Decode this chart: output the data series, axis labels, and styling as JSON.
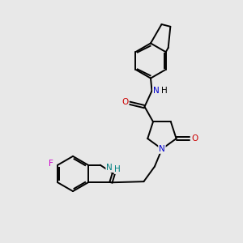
{
  "bg_color": "#e8e8e8",
  "bond_color": "#000000",
  "N_color": "#0000cc",
  "O_color": "#cc0000",
  "F_color": "#cc00cc",
  "NH_color": "#008080",
  "line_width": 1.4,
  "fig_width": 3.0,
  "fig_height": 3.0,
  "dpi": 100,
  "xlim": [
    0,
    10
  ],
  "ylim": [
    0,
    10
  ]
}
